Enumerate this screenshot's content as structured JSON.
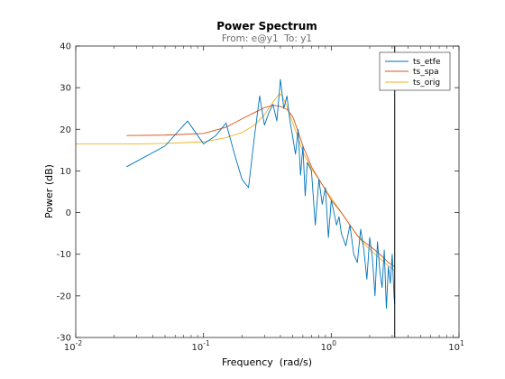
{
  "chart_data": {
    "type": "line",
    "title": "Power Spectrum",
    "subtitle": "From: e@y1  To: y1",
    "xlabel": "Frequency  (rad/s)",
    "ylabel": "Power (dB)",
    "xscale": "log",
    "xlim": [
      0.01,
      10
    ],
    "ylim": [
      -30,
      40
    ],
    "grid": false,
    "legend_position": "top-right",
    "x_tick_labels": [
      {
        "base": "10",
        "exp": "-2"
      },
      {
        "base": "10",
        "exp": "-1"
      },
      {
        "base": "10",
        "exp": "0"
      },
      {
        "base": "10",
        "exp": "1"
      }
    ],
    "y_ticks": [
      -30,
      -20,
      -10,
      0,
      10,
      20,
      30,
      40
    ],
    "nyquist_line": {
      "x": 3.14,
      "color": "#000000"
    },
    "series": [
      {
        "name": "ts_etfe",
        "color": "#0072BD",
        "x": [
          0.025,
          0.05,
          0.075,
          0.1,
          0.125,
          0.15,
          0.175,
          0.2,
          0.225,
          0.25,
          0.275,
          0.3,
          0.325,
          0.35,
          0.375,
          0.4,
          0.425,
          0.45,
          0.475,
          0.5,
          0.525,
          0.55,
          0.575,
          0.6,
          0.625,
          0.65,
          0.7,
          0.75,
          0.8,
          0.85,
          0.9,
          0.95,
          1.0,
          1.05,
          1.1,
          1.15,
          1.2,
          1.3,
          1.4,
          1.5,
          1.6,
          1.7,
          1.8,
          1.9,
          2.0,
          2.1,
          2.2,
          2.3,
          2.4,
          2.5,
          2.6,
          2.7,
          2.8,
          2.9,
          3.0,
          3.1,
          3.14
        ],
        "values": [
          11,
          16,
          22,
          16.5,
          18.5,
          21.5,
          14,
          8,
          6,
          18,
          28,
          21,
          24,
          26,
          22,
          32,
          25,
          28,
          22,
          18,
          14,
          20,
          9,
          16,
          4,
          12,
          10,
          -3,
          8,
          2,
          6,
          -6,
          3,
          0,
          -3,
          -1,
          -5,
          -8,
          -3,
          -10,
          -12,
          -4,
          -9,
          -16,
          -6,
          -11,
          -20,
          -7,
          -14,
          -18,
          -9,
          -23,
          -13,
          -17,
          -10,
          -20,
          -22
        ]
      },
      {
        "name": "ts_spa",
        "color": "#D95319",
        "x": [
          0.025,
          0.05,
          0.1,
          0.15,
          0.2,
          0.25,
          0.3,
          0.35,
          0.4,
          0.45,
          0.5,
          0.55,
          0.6,
          0.7,
          0.8,
          0.9,
          1.0,
          1.2,
          1.4,
          1.6,
          1.8,
          2.0,
          2.2,
          2.5,
          2.8,
          3.14
        ],
        "values": [
          18.5,
          18.6,
          19,
          20.5,
          22.5,
          24,
          25.2,
          25.8,
          25.5,
          24.8,
          23,
          19.5,
          16,
          11,
          8,
          5.5,
          3,
          0,
          -3,
          -5.5,
          -7,
          -8,
          -9,
          -10.5,
          -12,
          -13
        ]
      },
      {
        "name": "ts_orig",
        "color": "#EDB120",
        "x": [
          0.01,
          0.03,
          0.05,
          0.1,
          0.15,
          0.2,
          0.25,
          0.3,
          0.35,
          0.38,
          0.4,
          0.42,
          0.45,
          0.5,
          0.55,
          0.6,
          0.7,
          0.8,
          0.9,
          1.0,
          1.2,
          1.4,
          1.6,
          1.8,
          2.0,
          2.3,
          2.6,
          3.14
        ],
        "values": [
          16.5,
          16.5,
          16.6,
          17,
          18,
          19.2,
          21,
          23.5,
          26.5,
          28,
          28.5,
          27.5,
          25.5,
          21.5,
          18,
          14.5,
          10.5,
          8,
          5.5,
          3.5,
          0,
          -3,
          -5.5,
          -7.5,
          -8.8,
          -10.5,
          -12,
          -14
        ]
      }
    ]
  }
}
